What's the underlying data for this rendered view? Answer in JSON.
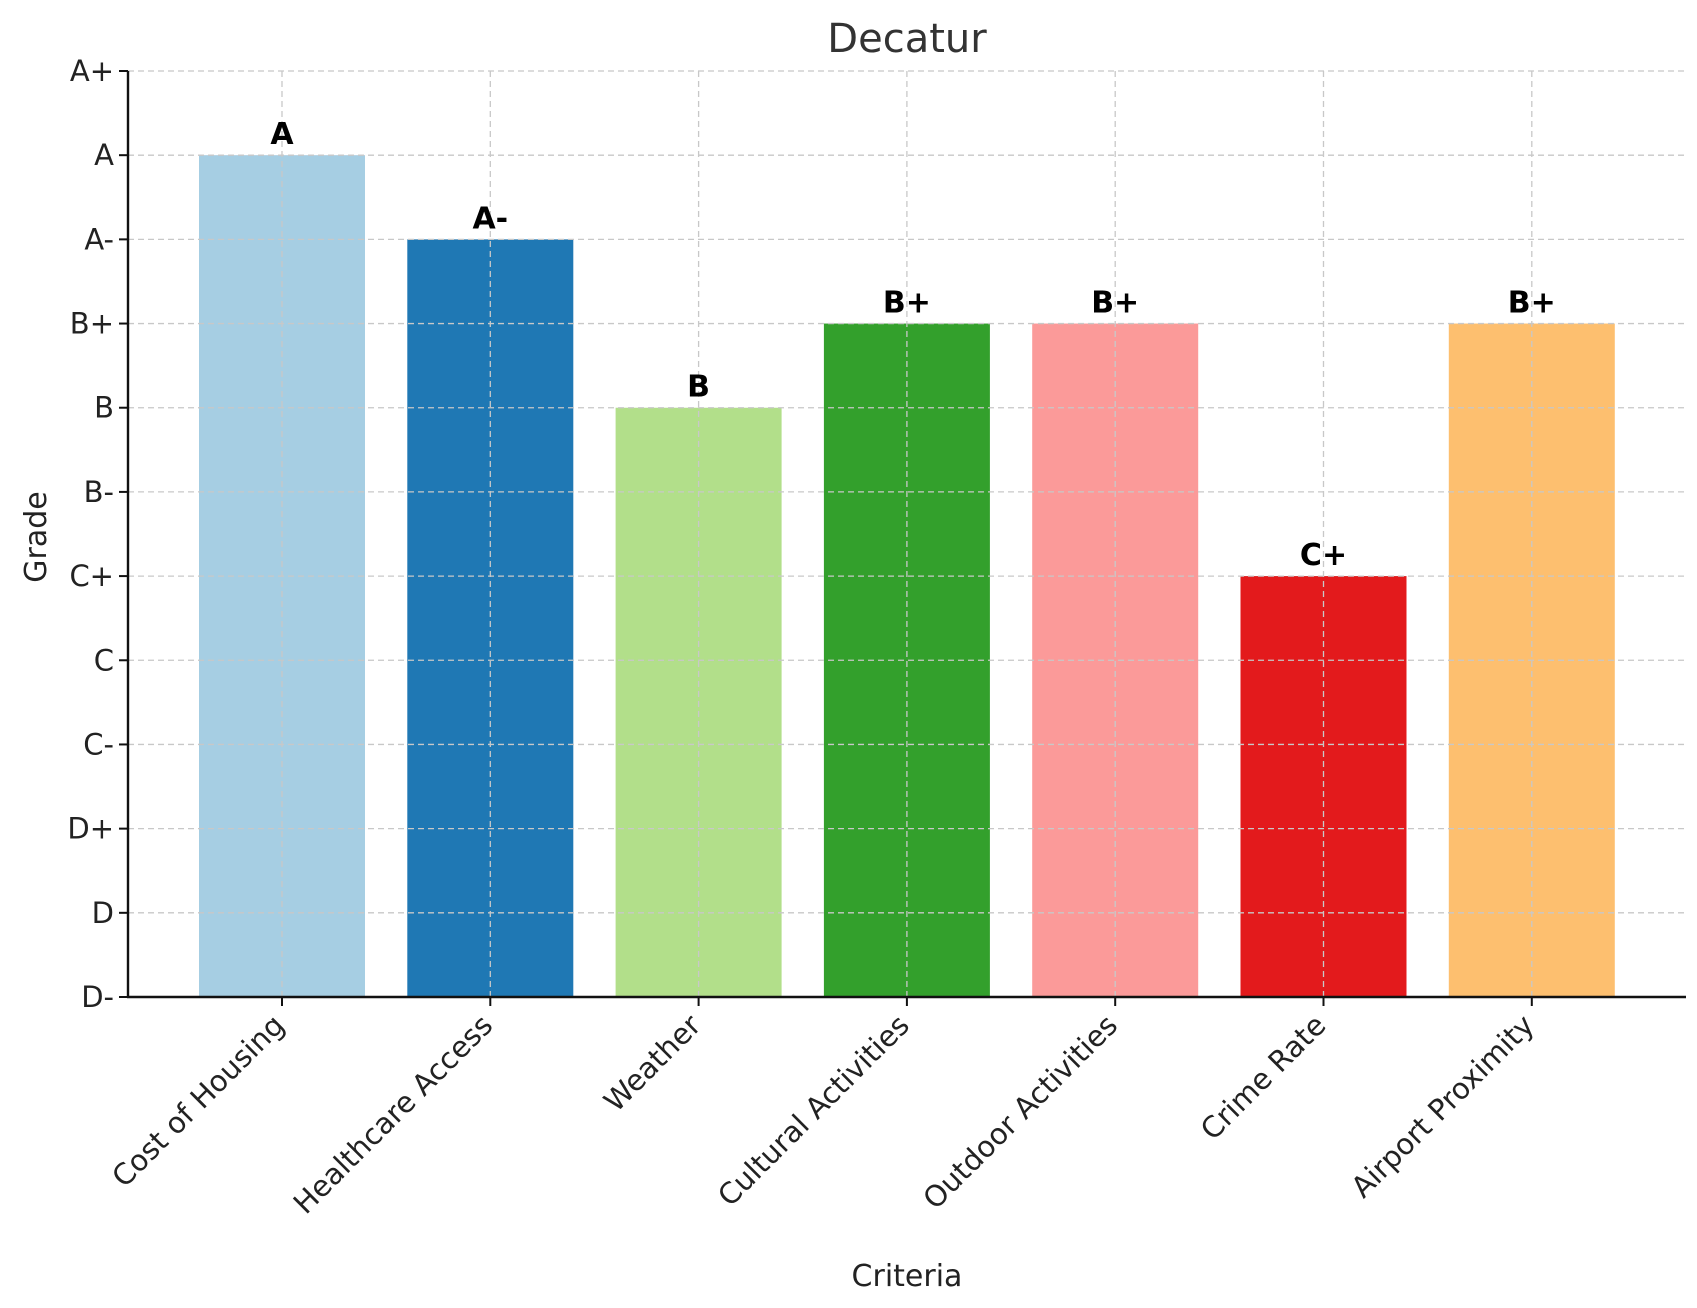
{
  "chart_data": {
    "type": "bar",
    "title": "Decatur",
    "xlabel": "Criteria",
    "ylabel": "Grade",
    "grade_scale": [
      "D-",
      "D",
      "D+",
      "C-",
      "C",
      "C+",
      "B-",
      "B",
      "B+",
      "A-",
      "A",
      "A+"
    ],
    "categories": [
      "Cost of Housing",
      "Healthcare Access",
      "Weather",
      "Cultural Activities",
      "Outdoor Activities",
      "Crime Rate",
      "Airport Proximity"
    ],
    "values": [
      "A",
      "A-",
      "B",
      "B+",
      "B+",
      "C+",
      "B+"
    ],
    "colors": [
      "#a6cee3",
      "#1f78b4",
      "#b2df8a",
      "#33a02c",
      "#fb9a99",
      "#e31a1c",
      "#fdbf6f"
    ],
    "grid": true,
    "legend": "none"
  }
}
